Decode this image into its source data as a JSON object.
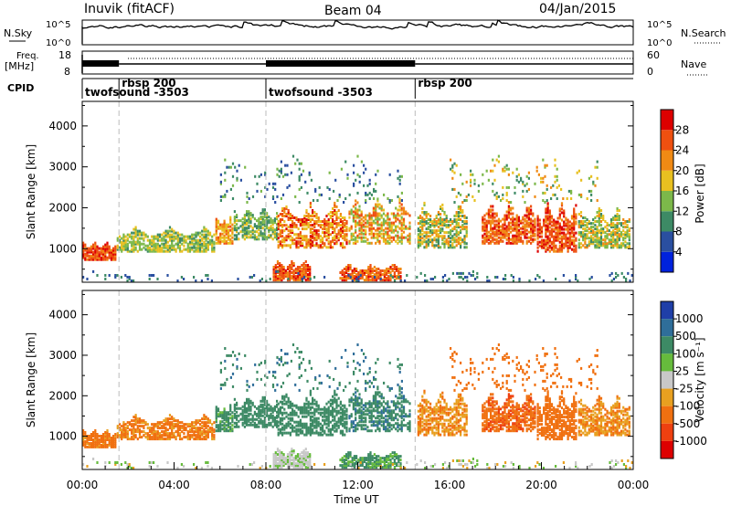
{
  "header": {
    "radar": "Inuvik (fitACF)",
    "beam": "Beam 04",
    "date": "04/Jan/2015"
  },
  "nsky_panel": {
    "left_label": "N.Sky",
    "right_label": "N.Search",
    "left_ticks": [
      "10^5",
      "10^0"
    ],
    "right_ticks": [
      "10^5",
      "10^0"
    ]
  },
  "freq_panel": {
    "left_label_line1": "Freq.",
    "left_label_line2": "[MHz]",
    "right_label": "Nave",
    "left_ticks": [
      "18",
      "8"
    ],
    "right_ticks": [
      "60",
      "0"
    ]
  },
  "cpid_panel": {
    "label": "CPID",
    "segments": [
      {
        "name": "twofsound -3503",
        "start": 0.0,
        "end": 1.6
      },
      {
        "name": "rbsp 200",
        "start": 1.6,
        "end": 8.0
      },
      {
        "name": "twofsound -3503",
        "start": 8.0,
        "end": 14.5
      },
      {
        "name": "rbsp 200",
        "start": 14.5,
        "end": 24.0
      }
    ]
  },
  "power_colorbar": {
    "title": "Power [dB]",
    "ticks": [
      "4",
      "8",
      "12",
      "16",
      "20",
      "24",
      "28"
    ],
    "colors": [
      "#0022dd",
      "#2a4fa0",
      "#3d8a65",
      "#7cb84a",
      "#e8c020",
      "#f08a14",
      "#ee5010",
      "#dd0000"
    ]
  },
  "velocity_colorbar": {
    "title": "Velocity [m s⁻¹]",
    "ticks": [
      "1000",
      "500",
      "100",
      "25",
      "-25",
      "-100",
      "-500",
      "-1000"
    ],
    "colors": [
      "#1f3fa8",
      "#2f6e9a",
      "#3d8a65",
      "#66bb3c",
      "#c8c8c8",
      "#e8a020",
      "#f07010",
      "#ee4010",
      "#dd0000"
    ]
  },
  "chart_data": [
    {
      "type": "heatmap",
      "ylabel": "Slant Range [km]",
      "xlim": [
        0,
        24
      ],
      "ylim": [
        180,
        4600
      ],
      "yticks": [
        "1000",
        "2000",
        "3000",
        "4000"
      ],
      "quantity": "Power [dB]"
    },
    {
      "type": "heatmap",
      "ylabel": "Slant Range [km]",
      "xlabel": "Time UT",
      "xlim": [
        0,
        24
      ],
      "ylim": [
        180,
        4600
      ],
      "yticks": [
        "1000",
        "2000",
        "3000",
        "4000"
      ],
      "xtick_labels": [
        "00:00",
        "04:00",
        "08:00",
        "12:00",
        "16:00",
        "20:00",
        "00:00"
      ],
      "xticks": [
        0,
        4,
        8,
        12,
        16,
        20,
        24
      ],
      "quantity": "Velocity [m s⁻¹]"
    }
  ]
}
